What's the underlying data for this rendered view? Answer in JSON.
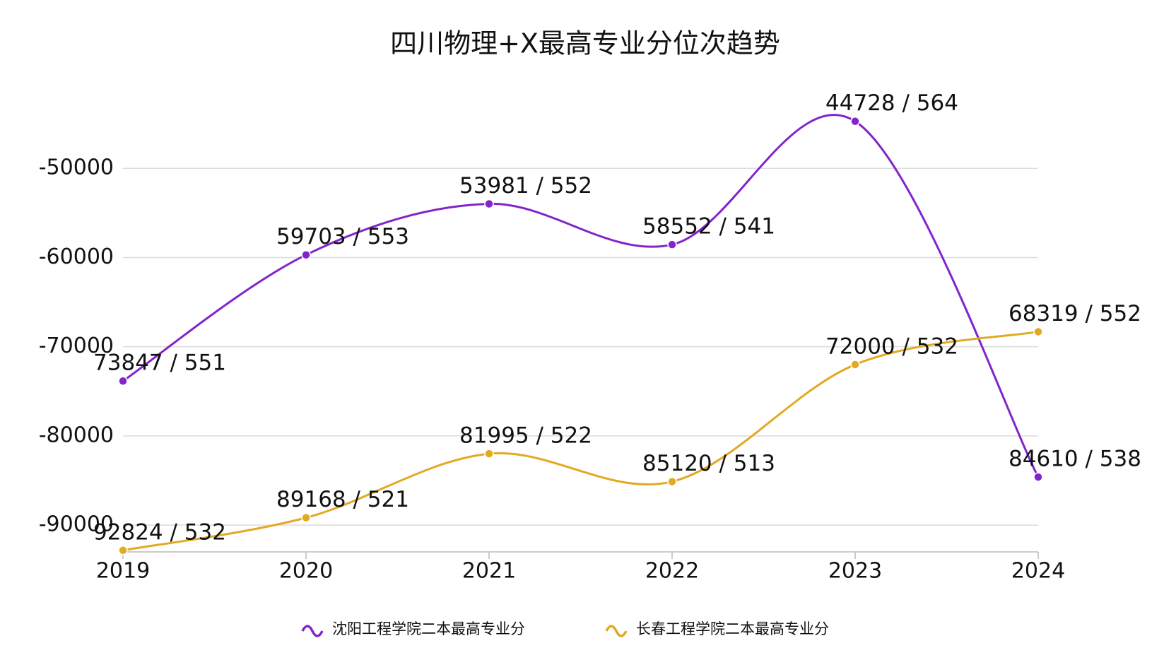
{
  "chart_data": {
    "type": "line",
    "title": "四川物理+X最高专业分位次趋势",
    "categories": [
      "2019",
      "2020",
      "2021",
      "2022",
      "2023",
      "2024"
    ],
    "series": [
      {
        "name": "沈阳工程学院二本最高专业分",
        "color": "#8224cc",
        "values": [
          -73847,
          -59703,
          -53981,
          -58552,
          -44728,
          -84610
        ],
        "value_labels": [
          "73847 / 551",
          "59703 / 553",
          "53981 / 552",
          "58552 / 541",
          "44728 / 564",
          "84610 / 538"
        ]
      },
      {
        "name": "长春工程学院二本最高专业分",
        "color": "#e2a922",
        "values": [
          -92824,
          -89168,
          -81995,
          -85120,
          -72000,
          -68319
        ],
        "value_labels": [
          "92824 / 532",
          "89168 / 521",
          "81995 / 522",
          "85120 / 513",
          "72000 / 532",
          "68319 / 552"
        ]
      }
    ],
    "ylim": [
      -93000,
      -40000
    ],
    "yticks": [
      -90000,
      -80000,
      -70000,
      -60000,
      -50000
    ],
    "grid": true,
    "legend": "bottom"
  }
}
